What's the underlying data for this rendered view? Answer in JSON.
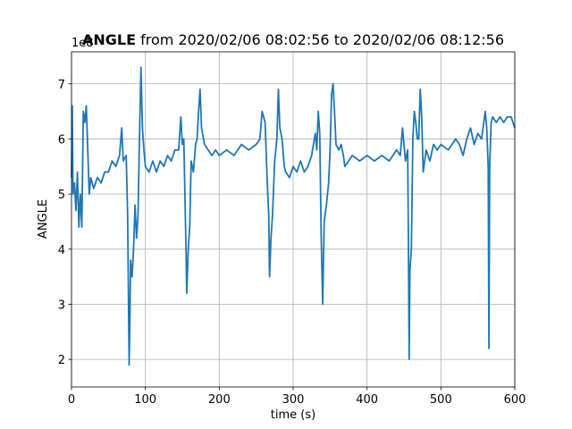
{
  "chart_data": {
    "type": "line",
    "title_bold": "ANGLE",
    "title_rest": " from 2020/02/06 08:02:56 to 2020/02/06 08:12:56",
    "xlabel": "time (s)",
    "ylabel": "ANGLE",
    "offset_text": "1e8",
    "xlim": [
      0,
      600
    ],
    "xticks": [
      0,
      100,
      200,
      300,
      400,
      500,
      600
    ],
    "ylim": [
      1.5,
      7.58
    ],
    "yticks": [
      2,
      3,
      4,
      5,
      6,
      7
    ],
    "grid": true,
    "series": [
      {
        "name": "ANGLE",
        "color": "#1f77b4",
        "x": [
          0,
          1,
          2,
          4,
          6,
          8,
          10,
          12,
          14,
          16,
          18,
          20,
          22,
          24,
          26,
          30,
          35,
          40,
          45,
          50,
          55,
          60,
          65,
          68,
          70,
          74,
          76,
          78,
          79,
          80,
          82,
          84,
          86,
          88,
          90,
          92,
          94,
          96,
          98,
          100,
          105,
          110,
          115,
          120,
          125,
          130,
          135,
          140,
          145,
          148,
          150,
          152,
          155,
          156,
          158,
          160,
          162,
          165,
          168,
          170,
          172,
          174,
          176,
          180,
          185,
          190,
          195,
          200,
          210,
          220,
          230,
          240,
          250,
          255,
          258,
          262,
          265,
          267,
          268,
          270,
          272,
          275,
          278,
          280,
          282,
          285,
          288,
          290,
          295,
          300,
          305,
          310,
          315,
          320,
          325,
          330,
          332,
          334,
          336,
          338,
          340,
          342,
          345,
          348,
          350,
          352,
          354,
          356,
          358,
          362,
          365,
          368,
          370,
          380,
          390,
          400,
          410,
          420,
          430,
          440,
          445,
          448,
          450,
          452,
          455,
          456,
          457,
          458,
          460,
          462,
          464,
          466,
          468,
          470,
          472,
          474,
          476,
          480,
          485,
          490,
          495,
          500,
          510,
          520,
          525,
          530,
          535,
          540,
          545,
          550,
          555,
          560,
          562,
          564,
          565,
          566,
          568,
          570,
          575,
          580,
          585,
          590,
          595,
          600
        ],
        "values": [
          5.3,
          6.6,
          5.0,
          5.2,
          4.7,
          5.4,
          4.4,
          5.0,
          4.4,
          6.5,
          6.3,
          6.6,
          5.8,
          5.0,
          5.3,
          5.1,
          5.3,
          5.2,
          5.4,
          5.4,
          5.6,
          5.5,
          5.7,
          6.2,
          5.6,
          5.7,
          4.6,
          1.9,
          2.7,
          3.8,
          3.5,
          4.0,
          4.8,
          4.2,
          4.6,
          6.0,
          7.3,
          6.2,
          5.8,
          5.5,
          5.4,
          5.6,
          5.4,
          5.6,
          5.5,
          5.7,
          5.6,
          5.8,
          5.8,
          6.4,
          5.9,
          6.0,
          4.0,
          3.2,
          4.0,
          4.4,
          5.6,
          5.4,
          5.9,
          6.0,
          6.5,
          6.9,
          6.2,
          5.9,
          5.8,
          5.7,
          5.8,
          5.7,
          5.8,
          5.7,
          5.9,
          5.8,
          5.9,
          6.0,
          6.5,
          6.3,
          5.2,
          4.6,
          3.5,
          4.2,
          4.6,
          5.6,
          6.0,
          6.9,
          6.2,
          6.0,
          5.5,
          5.4,
          5.3,
          5.5,
          5.4,
          5.6,
          5.4,
          5.5,
          5.7,
          6.1,
          5.8,
          6.5,
          6.1,
          4.2,
          3.0,
          4.5,
          4.8,
          5.2,
          5.8,
          6.8,
          7.0,
          6.5,
          5.9,
          5.8,
          5.9,
          5.7,
          5.5,
          5.7,
          5.6,
          5.7,
          5.6,
          5.7,
          5.6,
          5.8,
          5.7,
          6.2,
          5.9,
          5.6,
          5.8,
          4.2,
          2.0,
          3.6,
          4.0,
          6.0,
          6.5,
          6.3,
          6.0,
          6.0,
          6.9,
          6.4,
          5.4,
          5.8,
          5.6,
          5.9,
          5.8,
          5.9,
          5.8,
          6.0,
          5.9,
          5.7,
          6.0,
          6.2,
          5.9,
          6.1,
          6.0,
          6.5,
          6.2,
          5.5,
          2.2,
          5.5,
          6.3,
          6.4,
          6.3,
          6.4,
          6.3,
          6.4,
          6.4,
          6.2
        ]
      }
    ]
  }
}
